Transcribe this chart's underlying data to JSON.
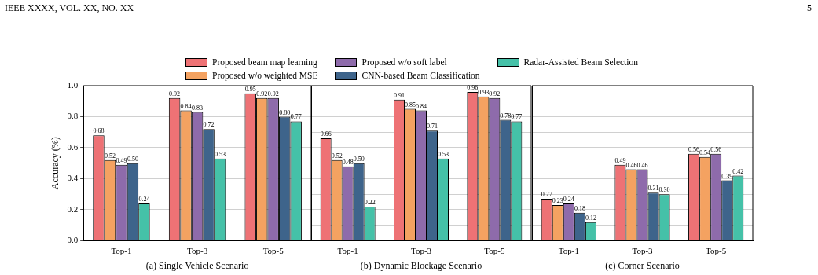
{
  "chart_data": [
    {
      "type": "bar",
      "xlabel": "(a) Single Vehicle Scenario",
      "ylabel": "Accuracy (%)",
      "categories": [
        "Top-1",
        "Top-3",
        "Top-5"
      ],
      "series": [
        {
          "name": "Proposed beam map learning",
          "color": "#ee7275",
          "values": [
            0.68,
            0.92,
            0.95
          ],
          "value_labels": [
            "0.68",
            "0.92",
            "0.95"
          ]
        },
        {
          "name": "Proposed w/o weighted MSE",
          "color": "#f4a261",
          "values": [
            0.52,
            0.84,
            0.92
          ],
          "value_labels": [
            "0.52",
            "0.84",
            "0.92"
          ]
        },
        {
          "name": "Proposed w/o soft label",
          "color": "#8e6bab",
          "values": [
            0.49,
            0.83,
            0.92
          ],
          "value_labels": [
            "0.49",
            "0.83",
            "0.92"
          ]
        },
        {
          "name": "CNN-based Beam Classification",
          "color": "#3e648b",
          "values": [
            0.5,
            0.72,
            0.8
          ],
          "value_labels": [
            "0.50",
            "0.72",
            "0.80"
          ]
        },
        {
          "name": "Radar-Assisted Beam Selection",
          "color": "#45c1a8",
          "values": [
            0.24,
            0.53,
            0.77
          ],
          "value_labels": [
            "0.24",
            "0.53",
            "0.77"
          ]
        }
      ],
      "ylim": [
        0,
        1
      ],
      "yticks": [
        {
          "value": 0,
          "label": "0.0"
        },
        0.2,
        0.4,
        0.6,
        0.8,
        {
          "value": 1,
          "label": "1.0"
        }
      ],
      "grid": "y",
      "legend": "top",
      "annotations": [
        "IEEE XXXX, VOL. XX, NO. XX",
        "5"
      ]
    },
    {
      "type": "bar",
      "xlabel": "(b) Dynamic Blockage Scenario",
      "categories": [
        "Top-1",
        "Top-3",
        "Top-5"
      ],
      "series": [
        {
          "color": "#ee7275",
          "values": [
            0.66,
            0.91,
            0.96
          ],
          "value_labels": [
            "0.66",
            "0.91",
            "0.96"
          ]
        },
        {
          "color": "#f4a261",
          "values": [
            0.52,
            0.85,
            0.93
          ],
          "value_labels": [
            "0.52",
            "0.85",
            "0.93"
          ]
        },
        {
          "color": "#8e6bab",
          "values": [
            0.48,
            0.84,
            0.92
          ],
          "value_labels": [
            "0.48",
            "0.84",
            "0.92"
          ]
        },
        {
          "color": "#3e648b",
          "values": [
            0.5,
            0.71,
            0.78
          ],
          "value_labels": [
            "0.50",
            "0.71",
            "0.78"
          ]
        },
        {
          "color": "#45c1a8",
          "values": [
            0.22,
            0.53,
            0.77
          ],
          "value_labels": [
            "0.22",
            "0.53",
            "0.77"
          ]
        }
      ],
      "ylim": [
        0,
        1
      ],
      "tick_labels": "x",
      "grid": "y"
    },
    {
      "type": "bar",
      "xlabel": "(c) Corner Scenario",
      "categories": [
        "Top-1",
        "Top-3",
        "Top-5"
      ],
      "series": [
        {
          "color": "#ee7275",
          "values": [
            0.27,
            0.49,
            0.56
          ],
          "value_labels": [
            "0.27",
            "0.49",
            "0.56"
          ]
        },
        {
          "color": "#f4a261",
          "values": [
            0.23,
            0.46,
            0.54
          ],
          "value_labels": [
            "0.23",
            "0.46",
            "0.54"
          ]
        },
        {
          "color": "#8e6bab",
          "values": [
            0.24,
            0.46,
            0.56
          ],
          "value_labels": [
            "0.24",
            "0.46",
            "0.56"
          ]
        },
        {
          "color": "#3e648b",
          "values": [
            0.18,
            0.31,
            0.39
          ],
          "value_labels": [
            "0.18",
            "0.31",
            "0.39"
          ]
        },
        {
          "color": "#45c1a8",
          "values": [
            0.12,
            0.3,
            0.42
          ],
          "value_labels": [
            "0.12",
            "0.30",
            "0.42"
          ]
        }
      ],
      "ylim": [
        0,
        1
      ],
      "tick_labels": "x",
      "grid": "y"
    }
  ]
}
